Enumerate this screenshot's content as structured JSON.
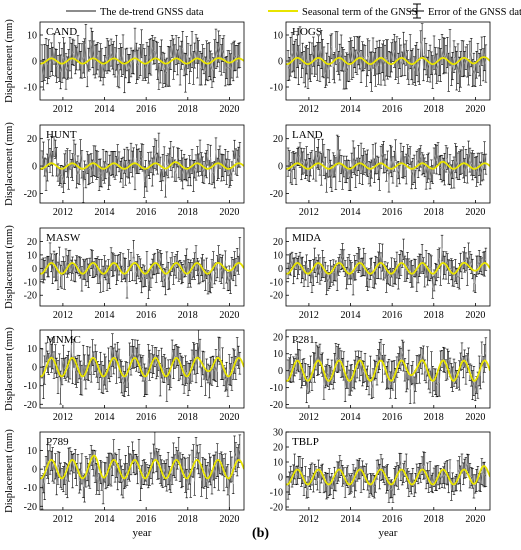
{
  "caption_label": "(b)",
  "colors": {
    "detrend": "#8c8c8c",
    "seasonal": "#e8e400",
    "error": "#000000"
  },
  "legend": {
    "detrend": "The de-trend GNSS data",
    "seasonal": "Seasonal term of the GNSS",
    "error": "Error of the GNSS data"
  },
  "chart_data": [
    {
      "type": "line",
      "title": "CAND",
      "xlabel": "",
      "ylabel": "Displacement (mm)",
      "xlim": [
        2010.9,
        2020.7
      ],
      "ylim": [
        -15,
        15
      ],
      "yticks": [
        -10,
        0,
        10
      ],
      "xticks": [
        2012,
        2014,
        2016,
        2018,
        2020
      ],
      "series": [
        {
          "name": "The de-trend GNSS data",
          "spread": 3.5
        },
        {
          "name": "Seasonal term of the GNSS",
          "amplitude": 1,
          "peaks": [
            2019.8
          ]
        },
        {
          "name": "Error of the GNSS data",
          "halfwidth": 6
        }
      ]
    },
    {
      "type": "line",
      "title": "HOGS",
      "xlabel": "",
      "ylabel": "",
      "xlim": [
        2010.9,
        2020.7
      ],
      "ylim": [
        -15,
        15
      ],
      "yticks": [
        -10,
        0,
        10
      ],
      "xticks": [
        2012,
        2014,
        2016,
        2018,
        2020
      ],
      "series": [
        {
          "name": "The de-trend GNSS data",
          "spread": 3.5
        },
        {
          "name": "Seasonal term of the GNSS",
          "amplitude": 1.2,
          "peaks": [
            2020.2
          ]
        },
        {
          "name": "Error of the GNSS data",
          "halfwidth": 6
        }
      ]
    },
    {
      "type": "line",
      "title": "HUNT",
      "xlabel": "",
      "ylabel": "Displacement (mm)",
      "xlim": [
        2010.9,
        2020.7
      ],
      "ylim": [
        -27,
        30
      ],
      "yticks": [
        -20,
        0,
        20
      ],
      "xticks": [
        2012,
        2014,
        2016,
        2018,
        2020
      ],
      "series": [
        {
          "name": "The de-trend GNSS data",
          "spread": 7
        },
        {
          "name": "Seasonal term of the GNSS",
          "amplitude": 2,
          "peaks": [
            2017.3
          ]
        },
        {
          "name": "Error of the GNSS data",
          "halfwidth": 9
        }
      ]
    },
    {
      "type": "line",
      "title": "LAND",
      "xlabel": "",
      "ylabel": "",
      "xlim": [
        2010.9,
        2020.7
      ],
      "ylim": [
        -27,
        30
      ],
      "yticks": [
        -20,
        0,
        20
      ],
      "xticks": [
        2012,
        2014,
        2016,
        2018,
        2020
      ],
      "series": [
        {
          "name": "The de-trend GNSS data",
          "spread": 7
        },
        {
          "name": "Seasonal term of the GNSS",
          "amplitude": 2,
          "peaks": [
            2018.4
          ]
        },
        {
          "name": "Error of the GNSS data",
          "halfwidth": 9
        }
      ]
    },
    {
      "type": "line",
      "title": "MASW",
      "xlabel": "",
      "ylabel": "Displacement (mm)",
      "xlim": [
        2010.9,
        2020.7
      ],
      "ylim": [
        -28,
        30
      ],
      "yticks": [
        -20,
        -10,
        0,
        10,
        20
      ],
      "xticks": [
        2012,
        2014,
        2016,
        2018,
        2020
      ],
      "series": [
        {
          "name": "The de-trend GNSS data",
          "spread": 6.5
        },
        {
          "name": "Seasonal term of the GNSS",
          "amplitude": 4,
          "peaks": [
            2019.9
          ]
        },
        {
          "name": "Error of the GNSS data",
          "halfwidth": 8
        }
      ]
    },
    {
      "type": "line",
      "title": "MIDA",
      "xlabel": "",
      "ylabel": "",
      "xlim": [
        2010.9,
        2020.7
      ],
      "ylim": [
        -28,
        30
      ],
      "yticks": [
        -20,
        -10,
        0,
        10,
        20
      ],
      "xticks": [
        2012,
        2014,
        2016,
        2018,
        2020
      ],
      "series": [
        {
          "name": "The de-trend GNSS data",
          "spread": 6.5
        },
        {
          "name": "Seasonal term of the GNSS",
          "amplitude": 4,
          "peaks": [
            2019.9
          ]
        },
        {
          "name": "Error of the GNSS data",
          "halfwidth": 8
        }
      ]
    },
    {
      "type": "line",
      "title": "MNMC",
      "xlabel": "",
      "ylabel": "Displacement (mm)",
      "xlim": [
        2010.9,
        2020.7
      ],
      "ylim": [
        -22,
        20
      ],
      "yticks": [
        -20,
        -10,
        0,
        10
      ],
      "xticks": [
        2012,
        2014,
        2016,
        2018,
        2020
      ],
      "series": [
        {
          "name": "The de-trend GNSS data",
          "spread": 5
        },
        {
          "name": "Seasonal term of the GNSS",
          "amplitude": 5,
          "peaks": [
            2018.9
          ]
        },
        {
          "name": "Error of the GNSS data",
          "halfwidth": 7
        }
      ]
    },
    {
      "type": "line",
      "title": "P281",
      "xlabel": "",
      "ylabel": "",
      "xlim": [
        2010.9,
        2020.7
      ],
      "ylim": [
        -22,
        24
      ],
      "yticks": [
        -20,
        -10,
        0,
        10,
        20
      ],
      "xticks": [
        2012,
        2014,
        2016,
        2018,
        2020
      ],
      "series": [
        {
          "name": "The de-trend GNSS data",
          "spread": 5
        },
        {
          "name": "Seasonal term of the GNSS",
          "amplitude": 6,
          "peaks": [
            2017.0
          ]
        },
        {
          "name": "Error of the GNSS data",
          "halfwidth": 7
        }
      ]
    },
    {
      "type": "line",
      "title": "P789",
      "xlabel": "year",
      "ylabel": "Displacement (mm)",
      "xlim": [
        2010.9,
        2020.7
      ],
      "ylim": [
        -22,
        20
      ],
      "yticks": [
        -20,
        -10,
        0,
        10
      ],
      "xticks": [
        2012,
        2014,
        2016,
        2018,
        2020
      ],
      "series": [
        {
          "name": "The de-trend GNSS data",
          "spread": 5
        },
        {
          "name": "Seasonal term of the GNSS",
          "amplitude": 5,
          "peaks": [
            2013.6
          ]
        },
        {
          "name": "Error of the GNSS data",
          "halfwidth": 7
        }
      ]
    },
    {
      "type": "line",
      "title": "TBLP",
      "xlabel": "year",
      "ylabel": "",
      "xlim": [
        2010.9,
        2020.7
      ],
      "ylim": [
        -22,
        30
      ],
      "yticks": [
        -20,
        -10,
        0,
        10,
        20,
        30
      ],
      "xticks": [
        2012,
        2014,
        2016,
        2018,
        2020
      ],
      "series": [
        {
          "name": "The de-trend GNSS data",
          "spread": 5
        },
        {
          "name": "Seasonal term of the GNSS",
          "amplitude": 5,
          "peaks": [
            2020.3
          ]
        },
        {
          "name": "Error of the GNSS data",
          "halfwidth": 7
        }
      ]
    }
  ]
}
